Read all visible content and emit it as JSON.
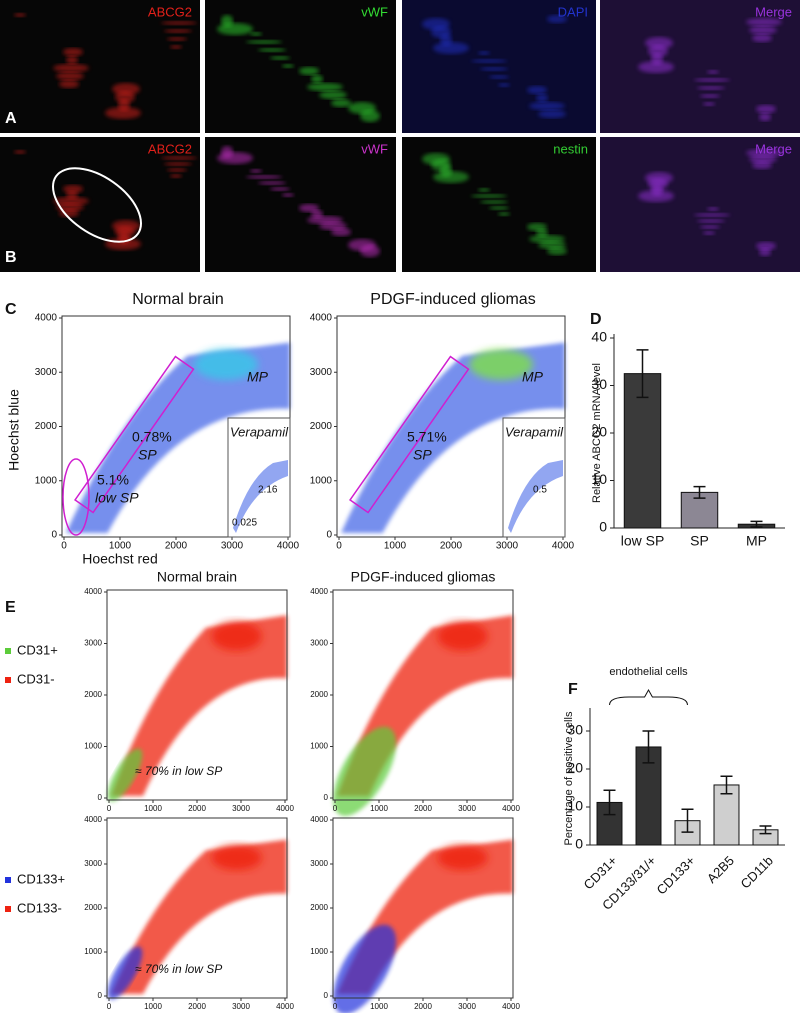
{
  "microscopy": {
    "row_a": {
      "label": "A",
      "channels": [
        "ABCG2",
        "vWF",
        "DAPI",
        "Merge"
      ]
    },
    "row_b": {
      "label": "B",
      "channels": [
        "ABCG2",
        "vWF",
        "nestin",
        "Merge"
      ]
    }
  },
  "panel_c": {
    "label": "C",
    "xlabel": "Hoechst red",
    "ylabel": "Hoechst blue",
    "ticks": [
      0,
      1000,
      2000,
      3000,
      4000
    ],
    "plots": [
      {
        "title": "Normal brain",
        "sp_pct": "0.78%",
        "sp": "SP",
        "low_pct": "5.1%",
        "low": "low SP",
        "mp": "MP",
        "inset_title": "Verapamil",
        "inset_values": [
          "2.16",
          "0.025"
        ]
      },
      {
        "title": "PDGF-induced gliomas",
        "sp_pct": "5.71%",
        "sp": "SP",
        "mp": "MP",
        "inset_title": "Verapamil",
        "inset_values": [
          "0.5"
        ]
      }
    ]
  },
  "panel_e": {
    "label": "E",
    "titles": [
      "Normal brain",
      "PDGF-induced gliomas"
    ],
    "ticks": [
      0,
      1000,
      2000,
      3000,
      4000
    ],
    "legend_top": [
      {
        "name": "CD31+",
        "color": "#5ccc3a"
      },
      {
        "name": "CD31-",
        "color": "#ee2211"
      }
    ],
    "legend_bottom": [
      {
        "name": "CD133+",
        "color": "#2233dd"
      },
      {
        "name": "CD133-",
        "color": "#ee2211"
      }
    ],
    "annotation": "≈ 70% in low SP"
  },
  "chart_data": [
    {
      "type": "bar",
      "label": "D",
      "ylabel": "Relative ABCG2 mRNA level",
      "categories": [
        "low SP",
        "SP",
        "MP"
      ],
      "values": [
        32.5,
        7.5,
        0.8
      ],
      "errors": [
        5,
        1.2,
        0.6
      ],
      "colors": [
        "#3a3a3a",
        "#8c8794",
        "#333333"
      ],
      "ylim": [
        0,
        40
      ],
      "yticks": [
        0,
        10,
        20,
        30,
        40
      ]
    },
    {
      "type": "bar",
      "label": "F",
      "ylabel": "Percentage of positive cells",
      "annotation": "endothelial cells",
      "categories": [
        "CD31+",
        "CD133/31/+",
        "CD133+",
        "A2B5",
        "CD11b"
      ],
      "values": [
        11.2,
        25.8,
        6.4,
        15.8,
        4
      ],
      "errors": [
        3.2,
        4.2,
        3,
        2.3,
        1
      ],
      "colors": [
        "#333333",
        "#333333",
        "#cfcfcf",
        "#cfcfcf",
        "#cfcfcf"
      ],
      "ylim": [
        0,
        35
      ],
      "yticks": [
        0,
        10,
        20,
        30
      ]
    }
  ]
}
